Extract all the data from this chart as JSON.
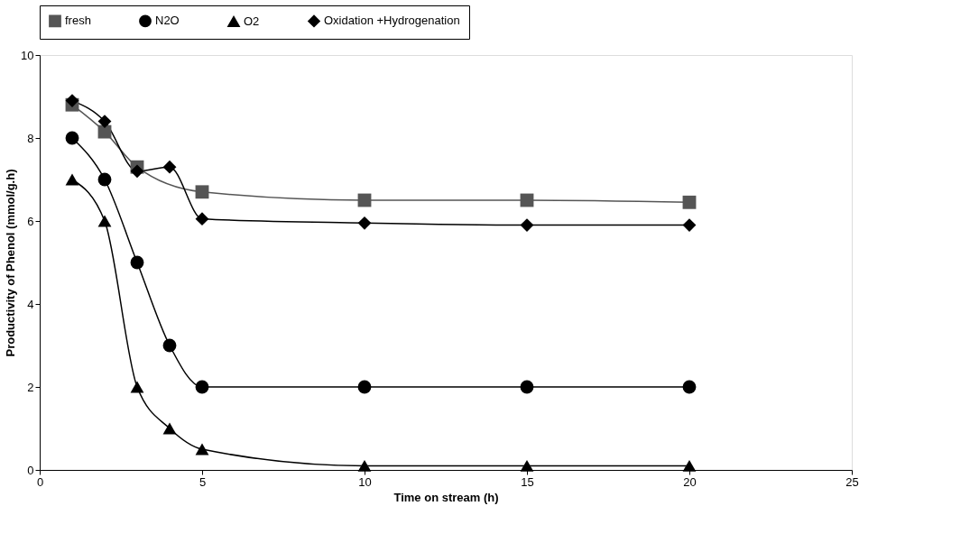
{
  "chart_data": {
    "type": "line",
    "xlabel": "Time on stream (h)",
    "ylabel": "Productivity of Phenol (mmol/g.h)",
    "x": [
      1,
      2,
      3,
      4,
      5,
      10,
      15,
      20
    ],
    "series": [
      {
        "name": "fresh",
        "color": "#555555",
        "marker": "square",
        "values": [
          8.8,
          8.15,
          7.3,
          null,
          6.7,
          6.5,
          6.5,
          6.45
        ]
      },
      {
        "name": "N2O",
        "color": "#000000",
        "marker": "circle",
        "values": [
          8.0,
          7.0,
          5.0,
          3.0,
          2.0,
          2.0,
          2.0,
          2.0
        ]
      },
      {
        "name": "O2",
        "color": "#000000",
        "marker": "triangle",
        "values": [
          7.0,
          6.0,
          2.0,
          1.0,
          0.5,
          0.1,
          0.1,
          0.1
        ]
      },
      {
        "name": "Oxidation +Hydrogenation",
        "color": "#000000",
        "marker": "diamond",
        "values": [
          8.9,
          8.4,
          7.2,
          7.3,
          6.05,
          5.95,
          5.9,
          5.9
        ]
      }
    ],
    "xlim": [
      0,
      25
    ],
    "xticks": [
      0,
      5,
      10,
      15,
      20,
      25
    ],
    "ylim": [
      0,
      10
    ],
    "yticks": [
      0,
      2,
      4,
      6,
      8,
      10
    ],
    "grid": false,
    "legend": "top",
    "line_style": "solid"
  }
}
